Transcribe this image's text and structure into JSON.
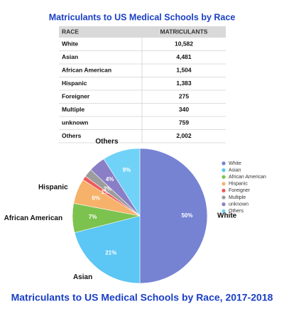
{
  "table": {
    "title": "Matriculants to US Medical Schools by Race",
    "columns": [
      "RACE",
      "MATRICULANTS"
    ],
    "rows": [
      [
        "White",
        "10,582"
      ],
      [
        "Asian",
        "4,481"
      ],
      [
        "African American",
        "1,504"
      ],
      [
        "Hispanic",
        "1,383"
      ],
      [
        "Foreigner",
        "275"
      ],
      [
        "Multiple",
        "340"
      ],
      [
        "unknown",
        "759"
      ],
      [
        "Others",
        "2,002"
      ]
    ]
  },
  "chart_data": {
    "type": "pie",
    "title": "Matriculants to US Medical Schools by Race, 2017-2018",
    "categories": [
      "White",
      "Asian",
      "African American",
      "Hispanic",
      "Foreigner",
      "Multiple",
      "unknown",
      "Others"
    ],
    "values": [
      50,
      21,
      7,
      6,
      1,
      2,
      4,
      9
    ],
    "value_labels": [
      "50%",
      "21%",
      "7%",
      "6%",
      "1%",
      "2%",
      "4%",
      "9%"
    ],
    "colors": [
      "#7683d3",
      "#5cc6f4",
      "#7cc24e",
      "#f6b26b",
      "#ee5b5b",
      "#9c9c9c",
      "#8a7fc6",
      "#70d2f6"
    ],
    "legend": "right"
  }
}
